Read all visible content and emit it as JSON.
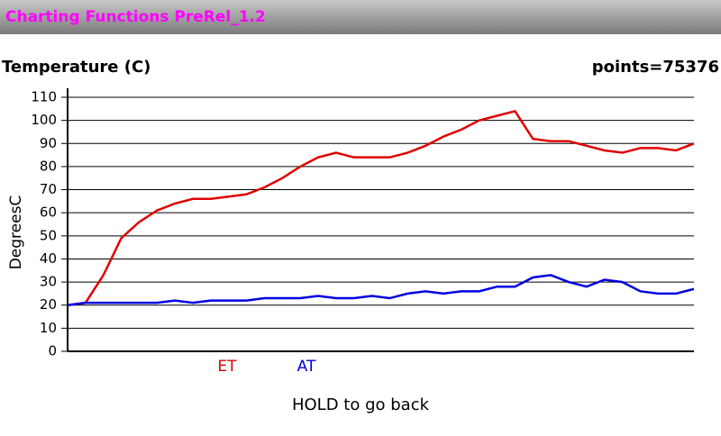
{
  "app_title": "Charting Functions PreRel_1.2",
  "footer": "HOLD to go back",
  "chart_data": {
    "type": "line",
    "title": "Temperature (C)",
    "points_label": "points=75376",
    "y_label": "DegreesC",
    "ylim": [
      0,
      110
    ],
    "yticks": [
      0,
      10,
      20,
      30,
      40,
      50,
      60,
      70,
      80,
      90,
      100,
      110
    ],
    "grid": true,
    "series": [
      {
        "name": "ET",
        "color": "#e00000",
        "values": [
          20,
          21,
          33,
          49,
          56,
          61,
          64,
          66,
          66,
          67,
          68,
          71,
          75,
          80,
          84,
          86,
          84,
          84,
          84,
          86,
          89,
          93,
          96,
          100,
          102,
          104,
          92,
          91,
          91,
          89,
          87,
          86,
          88,
          88,
          87,
          90
        ]
      },
      {
        "name": "AT",
        "color": "#0000e0",
        "values": [
          20,
          21,
          21,
          21,
          21,
          21,
          22,
          21,
          22,
          22,
          22,
          23,
          23,
          23,
          24,
          23,
          23,
          24,
          23,
          25,
          26,
          25,
          26,
          26,
          28,
          28,
          32,
          33,
          30,
          28,
          31,
          30,
          26,
          25,
          25,
          27
        ]
      }
    ]
  }
}
